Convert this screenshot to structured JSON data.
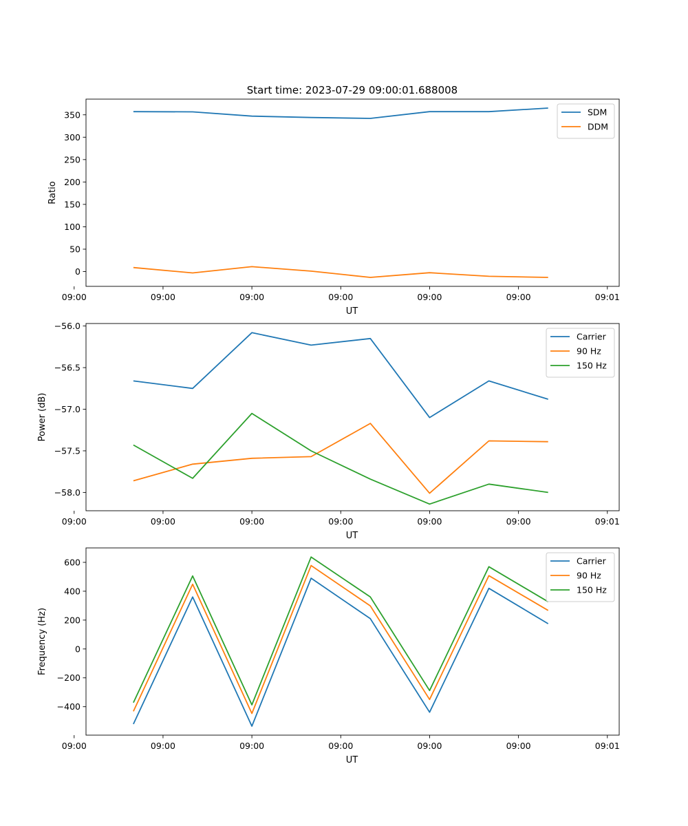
{
  "figure_title": "Start time: 2023-07-29 09:00:01.688008",
  "colors": {
    "blue": "#1f77b4",
    "orange": "#ff7f0e",
    "green": "#2ca02c"
  },
  "chart_data": [
    {
      "id": "ratio",
      "type": "line",
      "title": "Start time: 2023-07-29 09:00:01.688008",
      "xlabel": "UT",
      "ylabel": "Ratio",
      "x": [
        1,
        2,
        3,
        4,
        5,
        6,
        7,
        8
      ],
      "xlim": [
        0.2,
        9.2
      ],
      "xticks": [
        0,
        1.5,
        3,
        4.5,
        6,
        7.5,
        9
      ],
      "xtick_labels": [
        "09:00",
        "09:00",
        "09:00",
        "09:00",
        "09:00",
        "09:00",
        "09:01"
      ],
      "ylim": [
        -33,
        385
      ],
      "yticks": [
        0,
        50,
        100,
        150,
        200,
        250,
        300,
        350
      ],
      "ytick_labels": [
        "0",
        "50",
        "100",
        "150",
        "200",
        "250",
        "300",
        "350"
      ],
      "legend": "top-right",
      "series": [
        {
          "name": "SDM",
          "color": "#1f77b4",
          "values": [
            357,
            356.5,
            347,
            344,
            342,
            357,
            357,
            365
          ]
        },
        {
          "name": "DDM",
          "color": "#ff7f0e",
          "values": [
            9,
            -3,
            11,
            1,
            -13,
            -2.5,
            -10.5,
            -13
          ]
        }
      ]
    },
    {
      "id": "power",
      "type": "line",
      "title": "",
      "xlabel": "UT",
      "ylabel": "Power (dB)",
      "x": [
        1,
        2,
        3,
        4,
        5,
        6,
        7,
        8
      ],
      "xlim": [
        0.2,
        9.2
      ],
      "xticks": [
        0,
        1.5,
        3,
        4.5,
        6,
        7.5,
        9
      ],
      "xtick_labels": [
        "09:00",
        "09:00",
        "09:00",
        "09:00",
        "09:00",
        "09:00",
        "09:01"
      ],
      "ylim": [
        -58.22,
        -55.97
      ],
      "yticks": [
        -56.0,
        -56.5,
        -57.0,
        -57.5,
        -58.0
      ],
      "ytick_labels": [
        "−56.0",
        "−56.5",
        "−57.0",
        "−57.5",
        "−58.0"
      ],
      "legend": "top-right",
      "series": [
        {
          "name": "Carrier",
          "color": "#1f77b4",
          "values": [
            -56.66,
            -56.75,
            -56.08,
            -56.23,
            -56.15,
            -57.1,
            -56.66,
            -56.88
          ]
        },
        {
          "name": "90 Hz",
          "color": "#ff7f0e",
          "values": [
            -57.86,
            -57.66,
            -57.59,
            -57.57,
            -57.17,
            -58.01,
            -57.38,
            -57.39
          ]
        },
        {
          "name": "150 Hz",
          "color": "#2ca02c",
          "values": [
            -57.43,
            -57.83,
            -57.05,
            -57.5,
            -57.84,
            -58.14,
            -57.9,
            -58.0
          ]
        }
      ]
    },
    {
      "id": "frequency",
      "type": "line",
      "title": "",
      "xlabel": "UT",
      "ylabel": "Frequency (Hz)",
      "x": [
        1,
        2,
        3,
        4,
        5,
        6,
        7,
        8
      ],
      "xlim": [
        0.2,
        9.2
      ],
      "xticks": [
        0,
        1.5,
        3,
        4.5,
        6,
        7.5,
        9
      ],
      "xtick_labels": [
        "09:00",
        "09:00",
        "09:00",
        "09:00",
        "09:00",
        "09:00",
        "09:01"
      ],
      "ylim": [
        -597,
        700
      ],
      "yticks": [
        600,
        400,
        200,
        0,
        -200,
        -400
      ],
      "ytick_labels": [
        "600",
        "400",
        "200",
        "0",
        "−200",
        "−400"
      ],
      "legend": "top-right",
      "series": [
        {
          "name": "Carrier",
          "color": "#1f77b4",
          "values": [
            -520,
            360,
            -535,
            490,
            210,
            -438,
            420,
            175
          ]
        },
        {
          "name": "90 Hz",
          "color": "#ff7f0e",
          "values": [
            -432,
            448,
            -447,
            578,
            298,
            -350,
            508,
            267
          ]
        },
        {
          "name": "150 Hz",
          "color": "#2ca02c",
          "values": [
            -372,
            506,
            -387,
            637,
            360,
            -288,
            570,
            327
          ]
        }
      ]
    }
  ]
}
